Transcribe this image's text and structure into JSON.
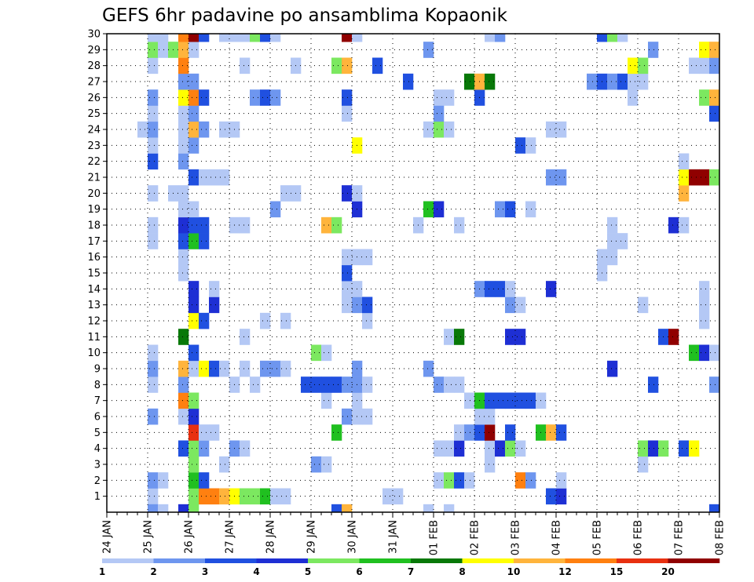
{
  "chart_data": {
    "type": "heatmap",
    "title": "GEFS 6hr padavine po ansamblima Kopaonik",
    "xlabel": "",
    "ylabel": "",
    "x_tick_labels": [
      "24 JAN",
      "25 JAN",
      "26 JAN",
      "27 JAN",
      "28 JAN",
      "29 JAN",
      "30 JAN",
      "31 JAN",
      "01 FEB",
      "02 FEB",
      "03 FEB",
      "04 FEB",
      "05 FEB",
      "06 FEB",
      "07 FEB",
      "08 FEB"
    ],
    "y_ticks": [
      1,
      2,
      3,
      4,
      5,
      6,
      7,
      8,
      9,
      10,
      11,
      12,
      13,
      14,
      15,
      16,
      17,
      18,
      19,
      20,
      21,
      22,
      23,
      24,
      25,
      26,
      27,
      28,
      29,
      30
    ],
    "x_range_steps": [
      0,
      60
    ],
    "y_range": [
      0,
      30
    ],
    "grid": true,
    "colorbar": {
      "labels": [
        "1",
        "2",
        "3",
        "4",
        "5",
        "6",
        "7",
        "8",
        "10",
        "12",
        "15",
        "20"
      ],
      "colors": [
        "#b4c8f5",
        "#6e96ef",
        "#2050e0",
        "#1e2fd4",
        "#7ce860",
        "#20c020",
        "#087808",
        "#ffff00",
        "#ffb43c",
        "#ff8010",
        "#e83010",
        "#900000"
      ]
    },
    "cells": [
      [
        1,
        4,
        1
      ],
      [
        1,
        8,
        5
      ],
      [
        1,
        9,
        10
      ],
      [
        1,
        10,
        10
      ],
      [
        1,
        11,
        9
      ],
      [
        1,
        12,
        8
      ],
      [
        1,
        13,
        5
      ],
      [
        1,
        14,
        5
      ],
      [
        1,
        15,
        6
      ],
      [
        1,
        16,
        1
      ],
      [
        1,
        17,
        1
      ],
      [
        1,
        27,
        1
      ],
      [
        1,
        28,
        1
      ],
      [
        1,
        43,
        3
      ],
      [
        1,
        44,
        4
      ],
      [
        2,
        4,
        2
      ],
      [
        2,
        5,
        1
      ],
      [
        2,
        8,
        6
      ],
      [
        2,
        9,
        3
      ],
      [
        2,
        32,
        1
      ],
      [
        2,
        33,
        5
      ],
      [
        2,
        34,
        3
      ],
      [
        2,
        35,
        1
      ],
      [
        2,
        40,
        10
      ],
      [
        2,
        41,
        2
      ],
      [
        2,
        44,
        1
      ],
      [
        3,
        8,
        5
      ],
      [
        3,
        11,
        1
      ],
      [
        3,
        20,
        2
      ],
      [
        3,
        21,
        1
      ],
      [
        3,
        37,
        1
      ],
      [
        3,
        52,
        1
      ],
      [
        4,
        7,
        3
      ],
      [
        4,
        8,
        5
      ],
      [
        4,
        9,
        2
      ],
      [
        4,
        12,
        2
      ],
      [
        4,
        13,
        1
      ],
      [
        4,
        32,
        1
      ],
      [
        4,
        33,
        1
      ],
      [
        4,
        34,
        4
      ],
      [
        4,
        37,
        1
      ],
      [
        4,
        38,
        4
      ],
      [
        4,
        39,
        5
      ],
      [
        4,
        40,
        1
      ],
      [
        4,
        52,
        5
      ],
      [
        4,
        53,
        4
      ],
      [
        4,
        54,
        5
      ],
      [
        4,
        56,
        3
      ],
      [
        4,
        57,
        8
      ],
      [
        5,
        8,
        11
      ],
      [
        5,
        9,
        1
      ],
      [
        5,
        10,
        1
      ],
      [
        5,
        22,
        6
      ],
      [
        5,
        34,
        1
      ],
      [
        5,
        35,
        2
      ],
      [
        5,
        36,
        3
      ],
      [
        5,
        37,
        12
      ],
      [
        5,
        39,
        3
      ],
      [
        5,
        42,
        6
      ],
      [
        5,
        43,
        9
      ],
      [
        5,
        44,
        3
      ],
      [
        6,
        4,
        2
      ],
      [
        6,
        7,
        1
      ],
      [
        6,
        8,
        4
      ],
      [
        6,
        23,
        2
      ],
      [
        6,
        24,
        1
      ],
      [
        6,
        25,
        1
      ],
      [
        6,
        36,
        1
      ],
      [
        6,
        37,
        1
      ],
      [
        7,
        7,
        10
      ],
      [
        7,
        8,
        5
      ],
      [
        7,
        21,
        1
      ],
      [
        7,
        24,
        1
      ],
      [
        7,
        35,
        1
      ],
      [
        7,
        36,
        6
      ],
      [
        7,
        37,
        3
      ],
      [
        7,
        38,
        3
      ],
      [
        7,
        39,
        3
      ],
      [
        7,
        40,
        3
      ],
      [
        7,
        41,
        3
      ],
      [
        7,
        42,
        1
      ],
      [
        8,
        4,
        1
      ],
      [
        8,
        7,
        2
      ],
      [
        8,
        12,
        1
      ],
      [
        8,
        14,
        1
      ],
      [
        8,
        19,
        3
      ],
      [
        8,
        20,
        3
      ],
      [
        8,
        21,
        3
      ],
      [
        8,
        22,
        3
      ],
      [
        8,
        23,
        2
      ],
      [
        8,
        24,
        2
      ],
      [
        8,
        25,
        1
      ],
      [
        8,
        32,
        2
      ],
      [
        8,
        33,
        1
      ],
      [
        8,
        34,
        1
      ],
      [
        8,
        53,
        3
      ],
      [
        8,
        59,
        2
      ],
      [
        9,
        4,
        2
      ],
      [
        9,
        7,
        9
      ],
      [
        9,
        8,
        1
      ],
      [
        9,
        9,
        8
      ],
      [
        9,
        10,
        3
      ],
      [
        9,
        11,
        1
      ],
      [
        9,
        13,
        1
      ],
      [
        9,
        15,
        2
      ],
      [
        9,
        16,
        2
      ],
      [
        9,
        17,
        1
      ],
      [
        9,
        24,
        2
      ],
      [
        9,
        31,
        2
      ],
      [
        9,
        49,
        4
      ],
      [
        10,
        4,
        1
      ],
      [
        10,
        8,
        3
      ],
      [
        10,
        20,
        5
      ],
      [
        10,
        21,
        1
      ],
      [
        10,
        57,
        6
      ],
      [
        10,
        58,
        4
      ],
      [
        10,
        59,
        1
      ],
      [
        11,
        7,
        7
      ],
      [
        11,
        13,
        1
      ],
      [
        11,
        33,
        1
      ],
      [
        11,
        34,
        7
      ],
      [
        11,
        39,
        4
      ],
      [
        11,
        40,
        4
      ],
      [
        11,
        54,
        3
      ],
      [
        11,
        55,
        12
      ],
      [
        12,
        8,
        8
      ],
      [
        12,
        9,
        3
      ],
      [
        12,
        15,
        1
      ],
      [
        12,
        17,
        1
      ],
      [
        12,
        25,
        1
      ],
      [
        12,
        58,
        1
      ],
      [
        13,
        8,
        4
      ],
      [
        13,
        10,
        4
      ],
      [
        13,
        23,
        1
      ],
      [
        13,
        24,
        2
      ],
      [
        13,
        25,
        3
      ],
      [
        13,
        39,
        2
      ],
      [
        13,
        40,
        1
      ],
      [
        13,
        52,
        1
      ],
      [
        13,
        58,
        1
      ],
      [
        14,
        8,
        4
      ],
      [
        14,
        10,
        1
      ],
      [
        14,
        23,
        1
      ],
      [
        14,
        24,
        1
      ],
      [
        14,
        36,
        2
      ],
      [
        14,
        37,
        3
      ],
      [
        14,
        38,
        3
      ],
      [
        14,
        39,
        1
      ],
      [
        14,
        43,
        4
      ],
      [
        14,
        58,
        1
      ],
      [
        15,
        7,
        1
      ],
      [
        15,
        23,
        3
      ],
      [
        15,
        48,
        1
      ],
      [
        16,
        7,
        1
      ],
      [
        16,
        23,
        1
      ],
      [
        16,
        24,
        1
      ],
      [
        16,
        25,
        1
      ],
      [
        16,
        48,
        1
      ],
      [
        16,
        49,
        1
      ],
      [
        17,
        4,
        1
      ],
      [
        17,
        7,
        3
      ],
      [
        17,
        8,
        6
      ],
      [
        17,
        9,
        3
      ],
      [
        17,
        49,
        1
      ],
      [
        17,
        50,
        1
      ],
      [
        18,
        4,
        1
      ],
      [
        18,
        7,
        4
      ],
      [
        18,
        8,
        3
      ],
      [
        18,
        9,
        3
      ],
      [
        18,
        12,
        1
      ],
      [
        18,
        13,
        1
      ],
      [
        18,
        21,
        9
      ],
      [
        18,
        22,
        5
      ],
      [
        18,
        30,
        1
      ],
      [
        18,
        34,
        1
      ],
      [
        18,
        49,
        1
      ],
      [
        18,
        55,
        4
      ],
      [
        18,
        56,
        1
      ],
      [
        19,
        7,
        1
      ],
      [
        19,
        8,
        1
      ],
      [
        19,
        16,
        2
      ],
      [
        19,
        24,
        4
      ],
      [
        19,
        31,
        6
      ],
      [
        19,
        32,
        4
      ],
      [
        19,
        38,
        2
      ],
      [
        19,
        39,
        3
      ],
      [
        19,
        41,
        1
      ],
      [
        20,
        4,
        1
      ],
      [
        20,
        6,
        1
      ],
      [
        20,
        7,
        1
      ],
      [
        20,
        17,
        1
      ],
      [
        20,
        18,
        1
      ],
      [
        20,
        23,
        4
      ],
      [
        20,
        24,
        1
      ],
      [
        20,
        56,
        9
      ],
      [
        21,
        8,
        3
      ],
      [
        21,
        9,
        1
      ],
      [
        21,
        10,
        1
      ],
      [
        21,
        11,
        1
      ],
      [
        21,
        43,
        2
      ],
      [
        21,
        44,
        2
      ],
      [
        21,
        56,
        8
      ],
      [
        21,
        57,
        12
      ],
      [
        21,
        58,
        12
      ],
      [
        21,
        59,
        5
      ],
      [
        22,
        4,
        3
      ],
      [
        22,
        7,
        2
      ],
      [
        22,
        56,
        1
      ],
      [
        23,
        4,
        1
      ],
      [
        23,
        7,
        1
      ],
      [
        23,
        8,
        2
      ],
      [
        23,
        24,
        8
      ],
      [
        23,
        40,
        3
      ],
      [
        23,
        41,
        1
      ],
      [
        24,
        3,
        1
      ],
      [
        24,
        4,
        2
      ],
      [
        24,
        7,
        1
      ],
      [
        24,
        8,
        9
      ],
      [
        24,
        9,
        2
      ],
      [
        24,
        11,
        1
      ],
      [
        24,
        12,
        1
      ],
      [
        24,
        31,
        1
      ],
      [
        24,
        32,
        5
      ],
      [
        24,
        33,
        1
      ],
      [
        24,
        43,
        1
      ],
      [
        24,
        44,
        1
      ],
      [
        25,
        4,
        1
      ],
      [
        25,
        7,
        1
      ],
      [
        25,
        8,
        2
      ],
      [
        25,
        23,
        1
      ],
      [
        25,
        32,
        2
      ],
      [
        25,
        59,
        3
      ],
      [
        26,
        4,
        2
      ],
      [
        26,
        7,
        8
      ],
      [
        26,
        8,
        10
      ],
      [
        26,
        9,
        3
      ],
      [
        26,
        14,
        2
      ],
      [
        26,
        15,
        3
      ],
      [
        26,
        16,
        2
      ],
      [
        26,
        23,
        3
      ],
      [
        26,
        32,
        1
      ],
      [
        26,
        33,
        1
      ],
      [
        26,
        36,
        3
      ],
      [
        26,
        51,
        1
      ],
      [
        26,
        58,
        5
      ],
      [
        26,
        59,
        9
      ],
      [
        27,
        7,
        2
      ],
      [
        27,
        8,
        2
      ],
      [
        27,
        29,
        3
      ],
      [
        27,
        35,
        7
      ],
      [
        27,
        36,
        9
      ],
      [
        27,
        37,
        7
      ],
      [
        27,
        47,
        2
      ],
      [
        27,
        48,
        3
      ],
      [
        27,
        49,
        2
      ],
      [
        27,
        50,
        3
      ],
      [
        27,
        51,
        1
      ],
      [
        27,
        52,
        1
      ],
      [
        28,
        4,
        1
      ],
      [
        28,
        7,
        10
      ],
      [
        28,
        13,
        1
      ],
      [
        28,
        18,
        1
      ],
      [
        28,
        22,
        5
      ],
      [
        28,
        23,
        9
      ],
      [
        28,
        26,
        3
      ],
      [
        28,
        51,
        8
      ],
      [
        28,
        52,
        5
      ],
      [
        28,
        57,
        1
      ],
      [
        28,
        58,
        1
      ],
      [
        28,
        59,
        2
      ],
      [
        29,
        4,
        5
      ],
      [
        29,
        5,
        1
      ],
      [
        29,
        6,
        5
      ],
      [
        29,
        7,
        9
      ],
      [
        29,
        8,
        1
      ],
      [
        29,
        31,
        2
      ],
      [
        29,
        53,
        2
      ],
      [
        29,
        58,
        8
      ],
      [
        29,
        59,
        9
      ],
      [
        30,
        4,
        1
      ],
      [
        30,
        5,
        1
      ],
      [
        30,
        7,
        10
      ],
      [
        30,
        8,
        12
      ],
      [
        30,
        9,
        3
      ],
      [
        30,
        11,
        1
      ],
      [
        30,
        12,
        1
      ],
      [
        30,
        13,
        1
      ],
      [
        30,
        14,
        5
      ],
      [
        30,
        15,
        3
      ],
      [
        30,
        16,
        1
      ],
      [
        30,
        23,
        12
      ],
      [
        30,
        24,
        1
      ],
      [
        30,
        37,
        1
      ],
      [
        30,
        38,
        2
      ],
      [
        30,
        48,
        3
      ],
      [
        30,
        49,
        5
      ],
      [
        30,
        50,
        1
      ],
      [
        0,
        4,
        2
      ],
      [
        0,
        5,
        1
      ],
      [
        0,
        7,
        4
      ],
      [
        0,
        8,
        5
      ],
      [
        0,
        22,
        3
      ],
      [
        0,
        23,
        9
      ],
      [
        0,
        31,
        1
      ],
      [
        0,
        33,
        1
      ],
      [
        0,
        59,
        3
      ]
    ]
  }
}
